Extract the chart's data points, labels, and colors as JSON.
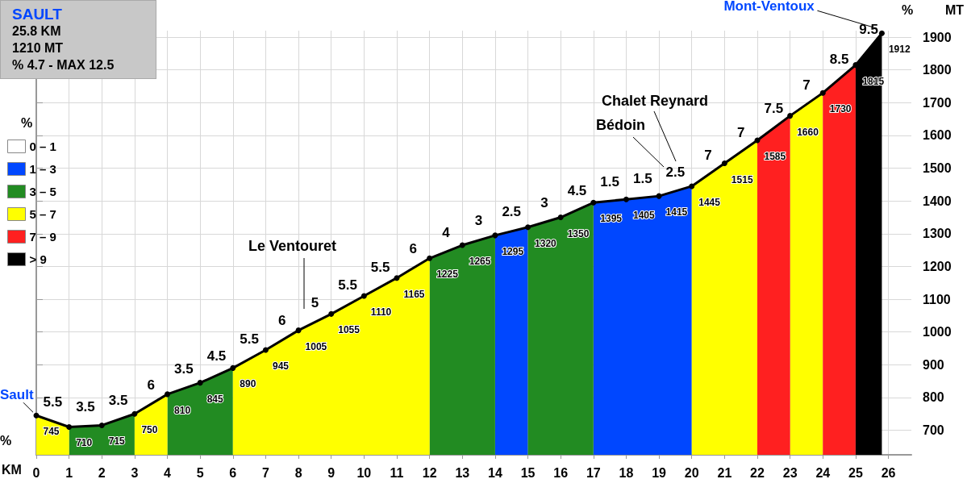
{
  "chart_data": {
    "type": "area",
    "title": "SAULT",
    "xlabel": "KM",
    "ylabel": "MT",
    "legend_title": "%",
    "x": [
      0,
      1,
      2,
      3,
      4,
      5,
      6,
      7,
      8,
      9,
      10,
      11,
      12,
      13,
      14,
      15,
      16,
      17,
      18,
      19,
      20,
      21,
      22,
      23,
      24,
      25,
      25.8
    ],
    "series": [
      {
        "name": "0 – 1",
        "color": "#ffffff",
        "values": [
          null,
          null,
          null,
          null,
          null,
          null,
          null,
          null,
          null,
          null,
          null,
          null,
          null,
          null,
          null,
          null,
          null,
          null,
          null,
          null,
          null,
          null,
          null,
          null,
          null,
          null,
          null
        ]
      },
      {
        "name": "1 – 3",
        "color": "#0047ff",
        "x": [
          14,
          15
        ],
        "values": [
          1295,
          1320
        ]
      },
      {
        "color": "#0047ff",
        "x": [
          17,
          18,
          19,
          20
        ],
        "values": [
          1395,
          1405,
          1415,
          1445
        ]
      },
      {
        "name": "3 – 5",
        "color": "#228b22",
        "x": [
          1,
          2,
          3
        ],
        "values": [
          710,
          715,
          750
        ]
      },
      {
        "color": "#228b22",
        "x": [
          4,
          5,
          6
        ],
        "values": [
          810,
          845,
          890
        ]
      },
      {
        "color": "#228b22",
        "x": [
          12,
          13,
          14
        ],
        "values": [
          1225,
          1265,
          1295
        ]
      },
      {
        "color": "#228b22",
        "x": [
          15,
          16,
          17
        ],
        "values": [
          1320,
          1350,
          1395
        ]
      },
      {
        "name": "5 – 7",
        "color": "#ffff00",
        "x": [
          0,
          1
        ],
        "values": [
          745,
          710
        ]
      },
      {
        "color": "#ffff00",
        "x": [
          3,
          4
        ],
        "values": [
          750,
          810
        ]
      },
      {
        "color": "#ffff00",
        "x": [
          6,
          7,
          8,
          9,
          10,
          11,
          12
        ],
        "values": [
          890,
          945,
          1005,
          1055,
          1110,
          1165,
          1225
        ]
      },
      {
        "color": "#ffff00",
        "x": [
          20,
          21,
          22
        ],
        "values": [
          1445,
          1515,
          1585
        ]
      },
      {
        "color": "#ffff00",
        "x": [
          23,
          24
        ],
        "values": [
          1660,
          1730
        ]
      },
      {
        "name": "7 – 9",
        "color": "#ff2020",
        "x": [
          22,
          23
        ],
        "values": [
          1585,
          1660
        ]
      },
      {
        "color": "#ff2020",
        "x": [
          24,
          25
        ],
        "values": [
          1730,
          1815
        ]
      },
      {
        "name": "> 9",
        "color": "#000000",
        "x": [
          25,
          25.8
        ],
        "values": [
          1815,
          1912
        ]
      },
      {
        "type": "line",
        "color": "#000000",
        "marker": "circle",
        "values": [
          745,
          710,
          715,
          750,
          810,
          845,
          890,
          945,
          1005,
          1055,
          1110,
          1165,
          1225,
          1265,
          1295,
          1320,
          1350,
          1395,
          1405,
          1415,
          1445,
          1515,
          1585,
          1660,
          1730,
          1815,
          1912
        ],
        "value_labels": [
          "745",
          "710",
          "715",
          "750",
          "810",
          "845",
          "890",
          "945",
          "1005",
          "1055",
          "1110",
          "1165",
          "1225",
          "1265",
          "1295",
          "1320",
          "1350",
          "1395",
          "1405",
          "1415",
          "1445",
          "1515",
          "1585",
          "1660",
          "1730",
          "1815",
          "1912"
        ]
      }
    ],
    "grid": true,
    "legend": "left",
    "xlim": [
      0,
      26.7
    ],
    "xticks": [
      0,
      1,
      2,
      3,
      4,
      5,
      6,
      7,
      8,
      9,
      10,
      11,
      12,
      13,
      14,
      15,
      16,
      17,
      18,
      19,
      20,
      21,
      22,
      23,
      24,
      25,
      26
    ],
    "ylim": [
      625,
      1920
    ],
    "yticks": [
      700,
      800,
      900,
      1000,
      1100,
      1200,
      1300,
      1400,
      1500,
      1600,
      1700,
      1800,
      1900
    ],
    "annotations": [
      "25.8 KM",
      "1210 MT",
      "% 4.7 - MAX 12.5",
      "%",
      "%",
      "Chalet Reynard",
      "Bédoin",
      "Le Ventouret",
      {
        "text": "Sault",
        "x": 0,
        "y": 745
      },
      {
        "text": "Mont-Ventoux",
        "x": 25.8,
        "y": 1912
      },
      {
        "text": "5.5",
        "x": 0.5,
        "y": 728
      },
      {
        "text": "3.5",
        "x": 1.5,
        "y": 713
      },
      {
        "text": "3.5",
        "x": 2.5,
        "y": 733
      },
      {
        "text": "6",
        "x": 3.5,
        "y": 780
      },
      {
        "text": "3.5",
        "x": 4.5,
        "y": 828
      },
      {
        "text": "4.5",
        "x": 5.5,
        "y": 868
      },
      {
        "text": "5.5",
        "x": 6.5,
        "y": 918
      },
      {
        "text": "6",
        "x": 7.5,
        "y": 975
      },
      {
        "text": "5",
        "x": 8.5,
        "y": 1030
      },
      {
        "text": "5.5",
        "x": 9.5,
        "y": 1083
      },
      {
        "text": "5.5",
        "x": 10.5,
        "y": 1138
      },
      {
        "text": "6",
        "x": 11.5,
        "y": 1195
      },
      {
        "text": "4",
        "x": 12.5,
        "y": 1245
      },
      {
        "text": "3",
        "x": 13.5,
        "y": 1280
      },
      {
        "text": "2.5",
        "x": 14.5,
        "y": 1308
      },
      {
        "text": "3",
        "x": 15.5,
        "y": 1335
      },
      {
        "text": "4.5",
        "x": 16.5,
        "y": 1373
      },
      {
        "text": "1.5",
        "x": 17.5,
        "y": 1400
      },
      {
        "text": "1.5",
        "x": 18.5,
        "y": 1410
      },
      {
        "text": "2.5",
        "x": 19.5,
        "y": 1430
      },
      {
        "text": "7",
        "x": 20.5,
        "y": 1480
      },
      {
        "text": "7",
        "x": 21.5,
        "y": 1550
      },
      {
        "text": "7.5",
        "x": 22.5,
        "y": 1623
      },
      {
        "text": "7",
        "x": 23.5,
        "y": 1695
      },
      {
        "text": "8.5",
        "x": 24.5,
        "y": 1773
      },
      {
        "text": "9.5",
        "x": 25.4,
        "y": 1864
      }
    ]
  }
}
